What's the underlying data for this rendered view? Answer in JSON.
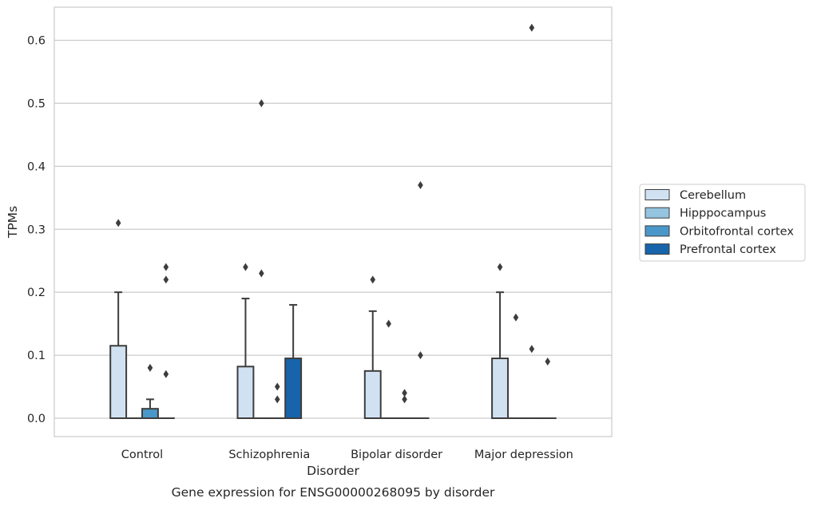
{
  "chart_data": {
    "type": "box",
    "title": "",
    "caption": "Gene expression for ENSG00000268095 by disorder",
    "xlabel": "Disorder",
    "ylabel": "TPMs",
    "ylim": [
      -0.03,
      0.655
    ],
    "yticks": [
      "0.0",
      "0.1",
      "0.2",
      "0.3",
      "0.4",
      "0.5",
      "0.6"
    ],
    "grid": true,
    "legend_position": "right",
    "categories": [
      "Control",
      "Schizophrenia",
      "Bipolar disorder",
      "Major depression"
    ],
    "series": [
      {
        "name": "Cerebellum",
        "color": "#d0e1f2",
        "boxes": [
          {
            "category": "Control",
            "q1": 0.0,
            "median": 0.0,
            "q3": 0.115,
            "whisker_low": 0.0,
            "whisker_high": 0.2,
            "outliers": [
              0.31
            ]
          },
          {
            "category": "Schizophrenia",
            "q1": 0.0,
            "median": 0.0,
            "q3": 0.082,
            "whisker_low": 0.0,
            "whisker_high": 0.19,
            "outliers": [
              0.24
            ]
          },
          {
            "category": "Bipolar disorder",
            "q1": 0.0,
            "median": 0.0,
            "q3": 0.075,
            "whisker_low": 0.0,
            "whisker_high": 0.17,
            "outliers": [
              0.22
            ]
          },
          {
            "category": "Major depression",
            "q1": 0.0,
            "median": 0.0,
            "q3": 0.095,
            "whisker_low": 0.0,
            "whisker_high": 0.2,
            "outliers": [
              0.24
            ]
          }
        ]
      },
      {
        "name": "Hipppocampus",
        "color": "#94c4df",
        "boxes": [
          {
            "category": "Control",
            "q1": 0.0,
            "median": 0.0,
            "q3": 0.0,
            "whisker_low": 0.0,
            "whisker_high": 0.0,
            "outliers": []
          },
          {
            "category": "Schizophrenia",
            "q1": 0.0,
            "median": 0.0,
            "q3": 0.0,
            "whisker_low": 0.0,
            "whisker_high": 0.0,
            "outliers": [
              0.23,
              0.5
            ]
          },
          {
            "category": "Bipolar disorder",
            "q1": 0.0,
            "median": 0.0,
            "q3": 0.0,
            "whisker_low": 0.0,
            "whisker_high": 0.0,
            "outliers": [
              0.15
            ]
          },
          {
            "category": "Major depression",
            "q1": 0.0,
            "median": 0.0,
            "q3": 0.0,
            "whisker_low": 0.0,
            "whisker_high": 0.0,
            "outliers": [
              0.16
            ]
          }
        ]
      },
      {
        "name": "Orbitofrontal cortex",
        "color": "#4a98c9",
        "boxes": [
          {
            "category": "Control",
            "q1": 0.0,
            "median": 0.0,
            "q3": 0.015,
            "whisker_low": 0.0,
            "whisker_high": 0.03,
            "outliers": [
              0.08
            ]
          },
          {
            "category": "Schizophrenia",
            "q1": 0.0,
            "median": 0.0,
            "q3": 0.0,
            "whisker_low": 0.0,
            "whisker_high": 0.0,
            "outliers": [
              0.03,
              0.05
            ]
          },
          {
            "category": "Bipolar disorder",
            "q1": 0.0,
            "median": 0.0,
            "q3": 0.0,
            "whisker_low": 0.0,
            "whisker_high": 0.0,
            "outliers": [
              0.03,
              0.04
            ]
          },
          {
            "category": "Major depression",
            "q1": 0.0,
            "median": 0.0,
            "q3": 0.0,
            "whisker_low": 0.0,
            "whisker_high": 0.0,
            "outliers": [
              0.11,
              0.62
            ]
          }
        ]
      },
      {
        "name": "Prefrontal cortex",
        "color": "#1764ab",
        "boxes": [
          {
            "category": "Control",
            "q1": 0.0,
            "median": 0.0,
            "q3": 0.0,
            "whisker_low": 0.0,
            "whisker_high": 0.0,
            "outliers": [
              0.07,
              0.22,
              0.24
            ]
          },
          {
            "category": "Schizophrenia",
            "q1": 0.0,
            "median": 0.0,
            "q3": 0.095,
            "whisker_low": 0.0,
            "whisker_high": 0.18,
            "outliers": []
          },
          {
            "category": "Bipolar disorder",
            "q1": 0.0,
            "median": 0.0,
            "q3": 0.0,
            "whisker_low": 0.0,
            "whisker_high": 0.0,
            "outliers": [
              0.1,
              0.37
            ]
          },
          {
            "category": "Major depression",
            "q1": 0.0,
            "median": 0.0,
            "q3": 0.0,
            "whisker_low": 0.0,
            "whisker_high": 0.0,
            "outliers": [
              0.09
            ]
          }
        ]
      }
    ]
  }
}
